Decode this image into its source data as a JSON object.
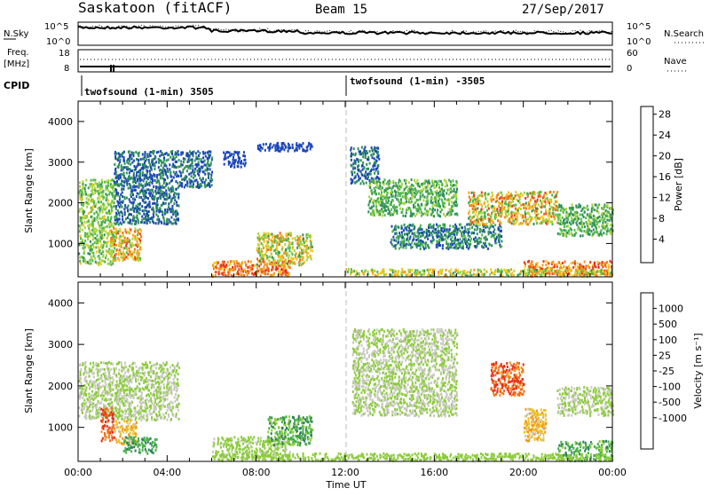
{
  "header": {
    "station": "Saskatoon (fitACF)",
    "beam": "Beam 15",
    "date": "27/Sep/2017"
  },
  "panels": {
    "nsky": {
      "left_label": "N.Sky",
      "left_ticks": [
        "10^5",
        "10^0"
      ],
      "right_ticks": [
        "10^5",
        "10^0"
      ],
      "right_label": "N.Search"
    },
    "freq": {
      "left_label_1": "Freq.",
      "left_label_2": "[MHz]",
      "left_ticks": [
        "18",
        "8"
      ],
      "right_ticks": [
        "60",
        "0"
      ],
      "right_label": "Nave"
    },
    "cpid": {
      "label": "CPID",
      "mode_1": "twofsound (1-min) 3505",
      "mode_2": "twofsound (1-min) -3505"
    }
  },
  "xaxis": {
    "ticks": [
      "00:00",
      "04:00",
      "08:00",
      "12:00",
      "16:00",
      "20:00",
      "00:00"
    ],
    "label": "Time UT"
  },
  "yaxis": {
    "label": "Slant Range [km]",
    "ticks": [
      "1000",
      "2000",
      "3000",
      "4000"
    ]
  },
  "colorbars": {
    "power": {
      "label": "Power [dB]",
      "ticks": [
        "4",
        "8",
        "12",
        "16",
        "20",
        "24",
        "28"
      ],
      "colors": [
        "#0000ee",
        "#1a45b8",
        "#2e8f5a",
        "#4fb84a",
        "#a8d43a",
        "#f0c61a",
        "#f29a1a",
        "#f06a1a",
        "#ee3a1a",
        "#e81c1c"
      ]
    },
    "velocity": {
      "label": "Velocity [m s⁻¹]",
      "ticks": [
        "1000",
        "500",
        "100",
        "25",
        "-25",
        "-100",
        "-500",
        "-1000"
      ],
      "colors": [
        "#1a3fb8",
        "#2a6fb8",
        "#2e7c5c",
        "#46b04a",
        "#8ccc3a",
        "#c8c8c0",
        "#f0c01a",
        "#f0961a",
        "#f06a1a",
        "#e82a1a"
      ]
    }
  },
  "chart_data": [
    {
      "type": "line",
      "title": "N.Sky / N.Search",
      "x_range_hours": [
        0,
        24
      ],
      "note": "noise level trace, log scale 10^0 to 10^5"
    },
    {
      "type": "line",
      "title": "Freq. / Nave",
      "x_range_hours": [
        0,
        24
      ],
      "ylim_left": [
        8,
        18
      ],
      "ylim_right": [
        0,
        60
      ]
    },
    {
      "type": "heatmap",
      "title": "Power [dB]",
      "xlim": [
        0,
        24
      ],
      "ylim": [
        180,
        4500
      ],
      "clim": [
        0,
        30
      ],
      "blobs": [
        {
          "x": [
            0,
            1.6
          ],
          "y": [
            500,
            2600
          ],
          "v": [
            8,
            16
          ]
        },
        {
          "x": [
            1.6,
            4.5
          ],
          "y": [
            1500,
            3300
          ],
          "v": [
            4,
            8
          ]
        },
        {
          "x": [
            4.5,
            6.0
          ],
          "y": [
            2400,
            3300
          ],
          "v": [
            4,
            8
          ]
        },
        {
          "x": [
            6.5,
            7.5
          ],
          "y": [
            2900,
            3300
          ],
          "v": [
            4,
            6
          ]
        },
        {
          "x": [
            8.0,
            10.5
          ],
          "y": [
            3300,
            3500
          ],
          "v": [
            4,
            6
          ]
        },
        {
          "x": [
            1.4,
            2.8
          ],
          "y": [
            600,
            1400
          ],
          "v": [
            10,
            26
          ]
        },
        {
          "x": [
            6.0,
            9.5
          ],
          "y": [
            180,
            600
          ],
          "v": [
            16,
            28
          ]
        },
        {
          "x": [
            8.0,
            10.5
          ],
          "y": [
            500,
            1300
          ],
          "v": [
            8,
            22
          ]
        },
        {
          "x": [
            12.2,
            13.5
          ],
          "y": [
            2500,
            3400
          ],
          "v": [
            4,
            8
          ]
        },
        {
          "x": [
            13.0,
            17.0
          ],
          "y": [
            1700,
            2600
          ],
          "v": [
            6,
            14
          ]
        },
        {
          "x": [
            14.0,
            19.0
          ],
          "y": [
            900,
            1500
          ],
          "v": [
            4,
            10
          ]
        },
        {
          "x": [
            17.5,
            21.5
          ],
          "y": [
            1500,
            2300
          ],
          "v": [
            8,
            26
          ]
        },
        {
          "x": [
            21.5,
            24.0
          ],
          "y": [
            1200,
            2000
          ],
          "v": [
            6,
            14
          ]
        },
        {
          "x": [
            20.0,
            24.0
          ],
          "y": [
            180,
            600
          ],
          "v": [
            16,
            28
          ]
        },
        {
          "x": [
            12.0,
            24.0
          ],
          "y": [
            180,
            400
          ],
          "v": [
            8,
            20
          ]
        }
      ]
    },
    {
      "type": "heatmap",
      "title": "Velocity [m s-1]",
      "xlim": [
        0,
        24
      ],
      "ylim": [
        180,
        4500
      ],
      "clim": [
        -1000,
        1000
      ],
      "blobs": [
        {
          "x": [
            0,
            4.5
          ],
          "y": [
            1200,
            2600
          ],
          "v": [
            -25,
            25
          ]
        },
        {
          "x": [
            1.0,
            1.6
          ],
          "y": [
            700,
            1500
          ],
          "v": [
            500,
            1000
          ]
        },
        {
          "x": [
            1.6,
            2.6
          ],
          "y": [
            600,
            1200
          ],
          "v": [
            100,
            500
          ]
        },
        {
          "x": [
            2.0,
            3.5
          ],
          "y": [
            400,
            800
          ],
          "v": [
            -500,
            -200
          ]
        },
        {
          "x": [
            6.0,
            9.5
          ],
          "y": [
            300,
            800
          ],
          "v": [
            -100,
            25
          ]
        },
        {
          "x": [
            8.5,
            10.5
          ],
          "y": [
            600,
            1300
          ],
          "v": [
            -500,
            -100
          ]
        },
        {
          "x": [
            12.3,
            17.0
          ],
          "y": [
            1300,
            3400
          ],
          "v": [
            -25,
            25
          ]
        },
        {
          "x": [
            18.5,
            20.0
          ],
          "y": [
            1800,
            2600
          ],
          "v": [
            500,
            1000
          ]
        },
        {
          "x": [
            20.0,
            21.0
          ],
          "y": [
            700,
            1500
          ],
          "v": [
            100,
            500
          ]
        },
        {
          "x": [
            21.5,
            24.0
          ],
          "y": [
            1300,
            2000
          ],
          "v": [
            -25,
            25
          ]
        },
        {
          "x": [
            21.5,
            24.0
          ],
          "y": [
            180,
            700
          ],
          "v": [
            -500,
            -100
          ]
        },
        {
          "x": [
            6.0,
            24.0
          ],
          "y": [
            180,
            400
          ],
          "v": [
            -200,
            -50
          ]
        }
      ]
    }
  ]
}
